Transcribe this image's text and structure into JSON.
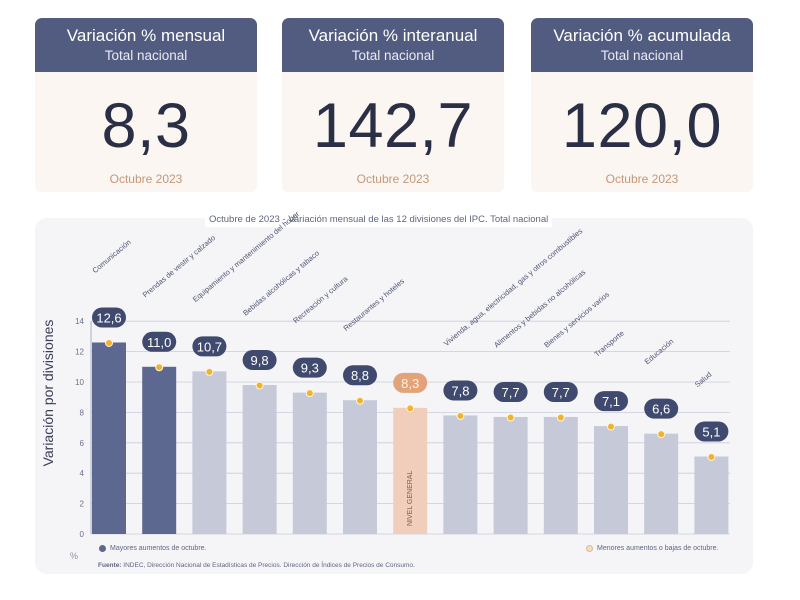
{
  "cards": [
    {
      "title": "Variación % mensual",
      "subtitle": "Total nacional",
      "value": "8,3",
      "date": "Octubre 2023"
    },
    {
      "title": "Variación % interanual",
      "subtitle": "Total nacional",
      "value": "142,7",
      "date": "Octubre 2023"
    },
    {
      "title": "Variación % acumulada",
      "subtitle": "Total nacional",
      "value": "120,0",
      "date": "Octubre 2023"
    }
  ],
  "chart_data": {
    "type": "bar",
    "title": "Octubre de 2023 - Variación mensual de las 12 divisiones del IPC. Total nacional",
    "ylabel": "Variación por divisiones",
    "yunit": "%",
    "ylim": [
      0,
      14
    ],
    "yticks": [
      0,
      2,
      4,
      6,
      8,
      10,
      12,
      14
    ],
    "grid": true,
    "categories": [
      "Comunicación",
      "Prendas de vestir y calzado",
      "Equipamiento y mantenimiento del hogar",
      "Bebidas alcohólicas y tabaco",
      "Recreación y cultura",
      "Restaurantes y hoteles",
      "NIVEL GENERAL",
      "Vivienda, agua, electricidad, gas y otros combustibles",
      "Alimentos y bebidas no alcohólicas",
      "Bienes y servicios varios",
      "Transporte",
      "Educación",
      "Salud"
    ],
    "values": [
      12.6,
      11.0,
      10.7,
      9.8,
      9.3,
      8.8,
      8.3,
      7.8,
      7.7,
      7.7,
      7.1,
      6.6,
      5.1
    ],
    "value_labels": [
      "12,6",
      "11,0",
      "10,7",
      "9,8",
      "9,3",
      "8,8",
      "8,3",
      "7,8",
      "7,7",
      "7,7",
      "7,1",
      "6,6",
      "5,1"
    ],
    "group": [
      "mayor",
      "mayor",
      "menor",
      "menor",
      "menor",
      "menor",
      "general",
      "menor",
      "menor",
      "menor",
      "menor",
      "menor",
      "menor"
    ],
    "legend": {
      "mayor": "Mayores aumentos de octubre.",
      "menor": "Menores aumentos o bajas de octubre."
    },
    "colors": {
      "mayor": "#5d6890",
      "menor": "#c5c9d8",
      "general": "#f1cdbb",
      "label_bubble": "#3f4a6e",
      "general_bubble": "#e2a37a",
      "dot": "#f0b32e"
    }
  },
  "source": {
    "label": "Fuente:",
    "text": "INDEC, Dirección Nacional de Estadísticas de Precios. Dirección de Índices de Precios de Consumo."
  }
}
